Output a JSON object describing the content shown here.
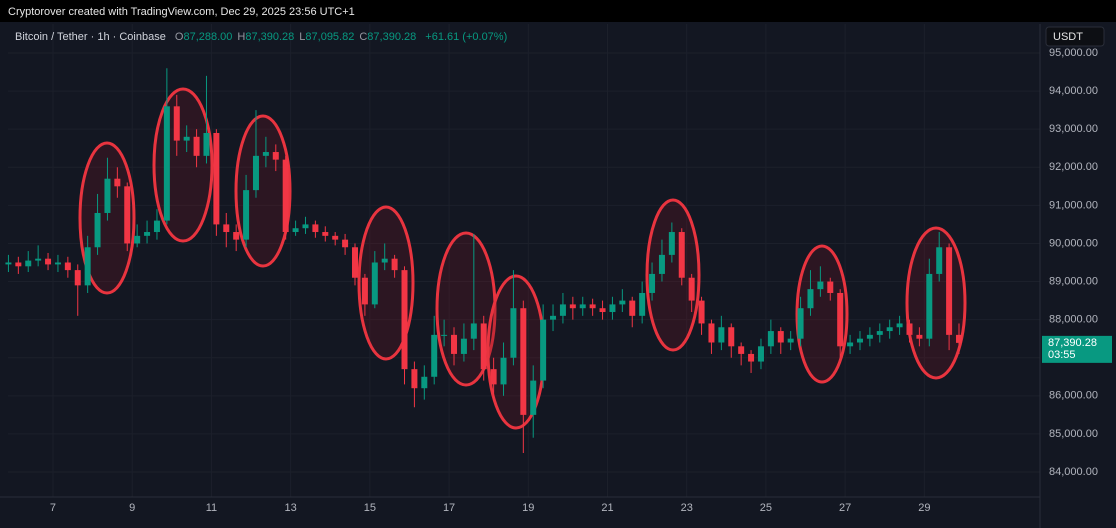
{
  "chart_data": {
    "type": "candlestick",
    "attribution": "Cryptorover created with TradingView.com, Dec 29, 2025 23:56 UTC+1",
    "symbol": "Bitcoin / Tether · 1h · Coinbase",
    "ohlc_legend": [
      {
        "label": "O",
        "value": "87,288.00"
      },
      {
        "label": "H",
        "value": "87,390.28"
      },
      {
        "label": "L",
        "value": "87,095.82"
      },
      {
        "label": "C",
        "value": "87,390.28"
      }
    ],
    "change": "+61.61 (+0.07%)",
    "currency": "USDT",
    "last_price": {
      "value": 87390.28,
      "label": "87,390.28"
    },
    "countdown": "03:55",
    "up_color": "#089981",
    "down_color": "#f23645",
    "grid": true,
    "xlim": [
      5.864,
      31.92
    ],
    "ylim": [
      83344,
      95761
    ],
    "xticks": [
      7,
      9,
      11,
      13,
      15,
      17,
      19,
      21,
      23,
      25,
      27,
      29
    ],
    "yticks": [
      {
        "value": 84000,
        "label": "84,000.00"
      },
      {
        "value": 85000,
        "label": "85,000.00"
      },
      {
        "value": 86000,
        "label": "86,000.00"
      },
      {
        "value": 87000,
        "label": "87,000.00"
      },
      {
        "value": 88000,
        "label": "88,000.00"
      },
      {
        "value": 89000,
        "label": "89,000.00"
      },
      {
        "value": 90000,
        "label": "90,000.00"
      },
      {
        "value": 91000,
        "label": "91,000.00"
      },
      {
        "value": 92000,
        "label": "92,000.00"
      },
      {
        "value": 93000,
        "label": "93,000.00"
      },
      {
        "value": 94000,
        "label": "94,000.00"
      },
      {
        "value": 95000,
        "label": "95,000.00"
      }
    ],
    "x": [
      5.875,
      6.125,
      6.375,
      6.625,
      6.875,
      7.125,
      7.375,
      7.625,
      7.875,
      8.125,
      8.375,
      8.625,
      8.875,
      9.125,
      9.375,
      9.625,
      9.875,
      10.125,
      10.375,
      10.625,
      10.875,
      11.125,
      11.375,
      11.625,
      11.875,
      12.125,
      12.375,
      12.625,
      12.875,
      13.125,
      13.375,
      13.625,
      13.875,
      14.125,
      14.375,
      14.625,
      14.875,
      15.125,
      15.375,
      15.625,
      15.875,
      16.125,
      16.375,
      16.625,
      16.875,
      17.125,
      17.375,
      17.625,
      17.875,
      18.125,
      18.375,
      18.625,
      18.875,
      19.125,
      19.375,
      19.625,
      19.875,
      20.125,
      20.375,
      20.625,
      20.875,
      21.125,
      21.375,
      21.625,
      21.875,
      22.125,
      22.375,
      22.625,
      22.875,
      23.125,
      23.375,
      23.625,
      23.875,
      24.125,
      24.375,
      24.625,
      24.875,
      25.125,
      25.375,
      25.625,
      25.875,
      26.125,
      26.375,
      26.625,
      26.875,
      27.125,
      27.375,
      27.625,
      27.875,
      28.125,
      28.375,
      28.625,
      28.875,
      29.125,
      29.375,
      29.625,
      29.875
    ],
    "open": [
      89450,
      89500,
      89400,
      89550,
      89600,
      89450,
      89500,
      89300,
      88900,
      89900,
      90800,
      91700,
      91500,
      90000,
      90200,
      90300,
      90600,
      93600,
      92700,
      92800,
      92300,
      92900,
      90500,
      90300,
      90100,
      91400,
      92300,
      92400,
      92200,
      90300,
      90400,
      90500,
      90300,
      90200,
      90100,
      89900,
      89100,
      88400,
      89500,
      89600,
      89300,
      86700,
      86200,
      86500,
      87600,
      87600,
      87100,
      87500,
      87900,
      86700,
      86300,
      87000,
      88300,
      85500,
      86400,
      88000,
      88100,
      88400,
      88300,
      88400,
      88300,
      88200,
      88400,
      88500,
      88100,
      88700,
      89200,
      89700,
      90300,
      89100,
      88500,
      87900,
      87400,
      87800,
      87300,
      87100,
      86900,
      87300,
      87700,
      87400,
      87500,
      88300,
      88800,
      89000,
      88700,
      87300,
      87400,
      87500,
      87600,
      87700,
      87800,
      87900,
      87600,
      87500,
      89200,
      89900,
      87600
    ],
    "high": [
      89700,
      89650,
      89800,
      89950,
      89750,
      89700,
      89650,
      89450,
      90200,
      91300,
      92250,
      92000,
      91600,
      90500,
      90600,
      90900,
      94600,
      93900,
      93100,
      93000,
      94400,
      93000,
      90800,
      90500,
      91800,
      93500,
      92800,
      92600,
      92300,
      90600,
      90700,
      90600,
      90450,
      90300,
      90250,
      90000,
      89200,
      89800,
      90000,
      89700,
      89400,
      86900,
      86800,
      88100,
      88000,
      87800,
      87900,
      90250,
      88100,
      87000,
      87400,
      89300,
      88500,
      86800,
      88400,
      88400,
      88700,
      88600,
      88600,
      88550,
      88500,
      88600,
      88800,
      88600,
      89000,
      89500,
      90100,
      90550,
      90400,
      89200,
      88600,
      88000,
      88100,
      87900,
      87400,
      87200,
      87500,
      88000,
      87800,
      87700,
      88600,
      89300,
      89400,
      89100,
      88800,
      87600,
      87700,
      87800,
      87900,
      88000,
      88100,
      88000,
      87800,
      89600,
      90300,
      90000,
      87900
    ],
    "low": [
      89250,
      89200,
      89250,
      89400,
      89300,
      89250,
      89100,
      88100,
      88700,
      89700,
      90600,
      91200,
      89800,
      89900,
      90000,
      90100,
      90500,
      92300,
      92400,
      92000,
      92100,
      90200,
      89900,
      89800,
      89900,
      91200,
      92000,
      91900,
      90100,
      90200,
      90250,
      90150,
      90050,
      89950,
      89700,
      88900,
      88100,
      88300,
      89300,
      89100,
      86300,
      85700,
      85900,
      86300,
      87300,
      86800,
      86900,
      87200,
      86400,
      85900,
      86000,
      86800,
      84500,
      84900,
      86200,
      87700,
      87900,
      88000,
      88100,
      88100,
      88000,
      88000,
      88200,
      87800,
      87900,
      88500,
      89000,
      89500,
      88900,
      88200,
      87600,
      87100,
      87200,
      87000,
      86800,
      86600,
      86700,
      87100,
      87100,
      87200,
      87300,
      88100,
      88600,
      88500,
      87000,
      87100,
      87200,
      87300,
      87400,
      87500,
      87600,
      87400,
      87300,
      87300,
      89000,
      87200,
      87100
    ],
    "close": [
      89500,
      89400,
      89550,
      89600,
      89450,
      89500,
      89300,
      88900,
      89900,
      90800,
      91700,
      91500,
      90000,
      90200,
      90300,
      90600,
      93600,
      92700,
      92800,
      92300,
      92900,
      90500,
      90300,
      90100,
      91400,
      92300,
      92400,
      92200,
      90300,
      90400,
      90500,
      90300,
      90200,
      90100,
      89900,
      89100,
      88400,
      89500,
      89600,
      89300,
      86700,
      86200,
      86500,
      87600,
      87600,
      87100,
      87500,
      87900,
      86700,
      86300,
      87000,
      88300,
      85500,
      86400,
      88000,
      88100,
      88400,
      88300,
      88400,
      88300,
      88200,
      88400,
      88500,
      88100,
      88700,
      89200,
      89700,
      90300,
      89100,
      88500,
      87900,
      87400,
      87800,
      87300,
      87100,
      86900,
      87300,
      87700,
      87400,
      87500,
      88300,
      88800,
      89000,
      88700,
      87300,
      87400,
      87500,
      87600,
      87700,
      87800,
      87900,
      87600,
      87500,
      89200,
      89900,
      87600,
      87390.28
    ]
  }
}
